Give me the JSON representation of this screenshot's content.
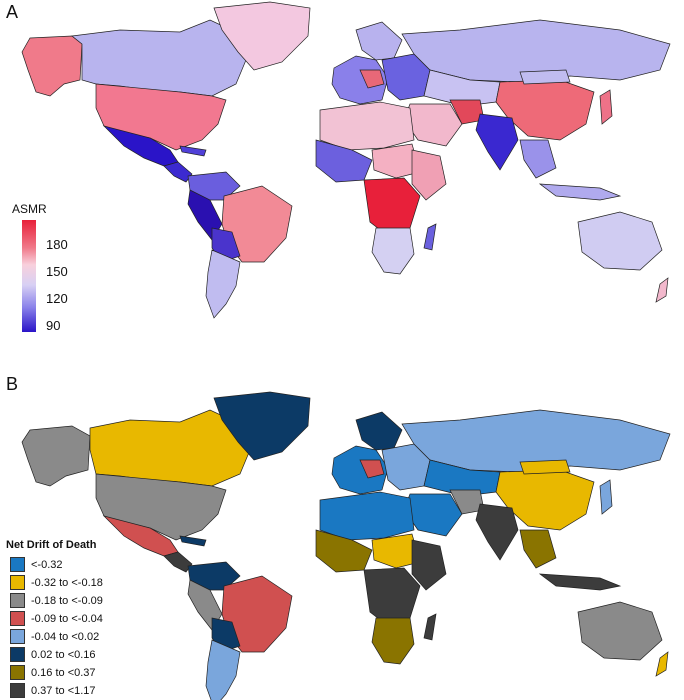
{
  "panel_a": {
    "letter": "A",
    "legend": {
      "title": "ASMR",
      "ticks": [
        "180",
        "150",
        "120",
        "90"
      ]
    },
    "colors": {
      "low": "#2a14c8",
      "mid": "#f8d0dc",
      "high": "#e8203a"
    }
  },
  "panel_b": {
    "letter": "B",
    "legend": {
      "title": "Net Drift of Death",
      "items": [
        {
          "label": "<-0.32",
          "color": "#1a78c2"
        },
        {
          "label": "-0.32 to <-0.18",
          "color": "#e8b800"
        },
        {
          "label": "-0.18 to <-0.09",
          "color": "#8a8a8a"
        },
        {
          "label": "-0.09 to <-0.04",
          "color": "#d05050"
        },
        {
          "label": "-0.04 to <0.02",
          "color": "#7aa6dc"
        },
        {
          "label": "0.02 to <0.16",
          "color": "#0c3a66"
        },
        {
          "label": "0.16 to <0.37",
          "color": "#8a7400"
        },
        {
          "label": "0.37 to <1.17",
          "color": "#3c3c3c"
        }
      ]
    }
  }
}
